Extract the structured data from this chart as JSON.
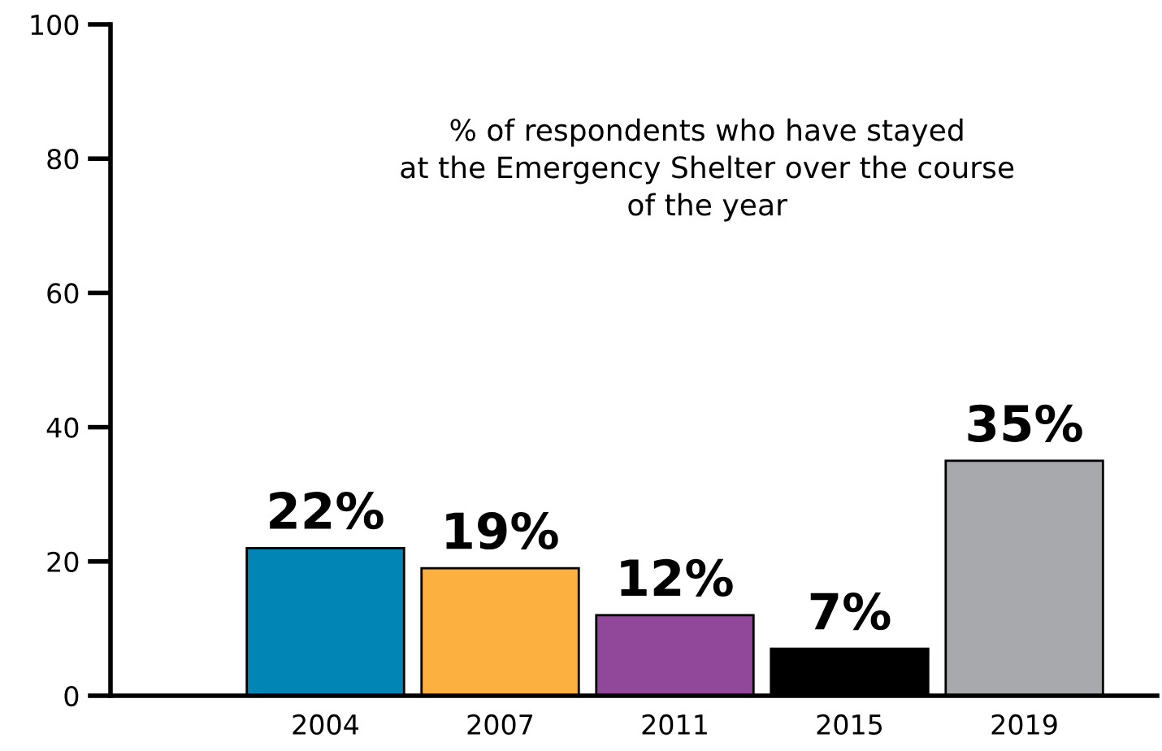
{
  "chart_data": {
    "type": "bar",
    "title": "% of respondents who have stayed\nat the Emergency Shelter over the course\nof the year",
    "categories": [
      "2004",
      "2007",
      "2011",
      "2015",
      "2019"
    ],
    "values": [
      22,
      19,
      12,
      7,
      35
    ],
    "colors": [
      "#0085b5",
      "#fbb040",
      "#92489a",
      "#000000",
      "#a7a9ac"
    ],
    "value_labels": [
      "22%",
      "19%",
      "12%",
      "7%",
      "35%"
    ],
    "ylim": [
      0,
      100
    ],
    "yticks": [
      0,
      20,
      40,
      60,
      80,
      100
    ],
    "grid": false,
    "legend": false
  }
}
